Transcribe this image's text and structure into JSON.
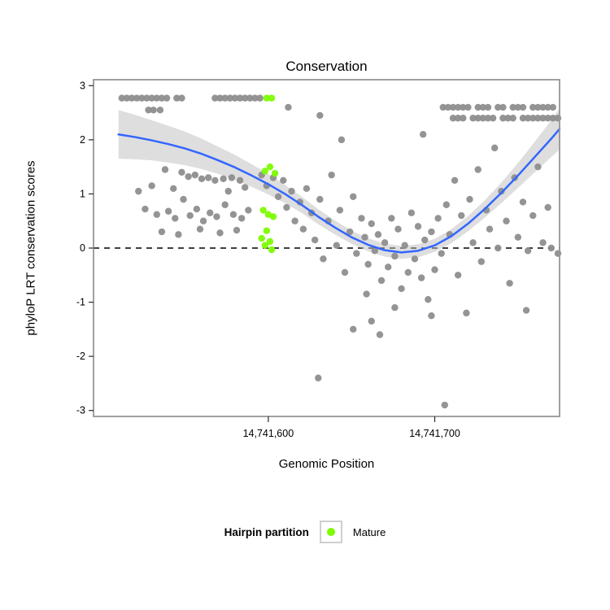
{
  "title": "Conservation",
  "x_axis": {
    "label": "Genomic Position",
    "ticks": [
      {
        "value": 14741600,
        "label": "14,741,600"
      },
      {
        "value": 14741700,
        "label": "14,741,700"
      }
    ]
  },
  "y_axis": {
    "label": "phyloP LRT conservation scores",
    "ticks": [
      {
        "value": 3,
        "label": "3"
      },
      {
        "value": 2,
        "label": "2"
      },
      {
        "value": 1,
        "label": "1"
      },
      {
        "value": 0,
        "label": "0"
      },
      {
        "value": -1,
        "label": "-1"
      },
      {
        "value": -2,
        "label": "-2"
      },
      {
        "value": -3,
        "label": "-3"
      }
    ]
  },
  "legend": {
    "title": "Hairpin partition",
    "items": [
      {
        "label": "Mature",
        "color": "#7CFC00"
      }
    ]
  },
  "colors": {
    "point": "#8E8E8E",
    "mature": "#7CFC00",
    "smooth_line": "#3366FF",
    "band": "#BDBDBD",
    "zero_line": "#000000",
    "panel_border": "#969696",
    "tick": "#2B2B2B"
  },
  "chart_data": {
    "type": "scatter",
    "title": "Conservation",
    "xlabel": "Genomic Position",
    "ylabel": "phyloP LRT conservation scores",
    "xlim": [
      14741495,
      14741775
    ],
    "ylim": [
      -3,
      3
    ],
    "grid": false,
    "zero_line_y": 0,
    "legend_position": "bottom",
    "series": [
      {
        "name": "points",
        "type": "scatter",
        "color": "#8E8E8E",
        "points": [
          [
            14741512,
            2.77
          ],
          [
            14741515,
            2.77
          ],
          [
            14741518,
            2.77
          ],
          [
            14741521,
            2.77
          ],
          [
            14741524,
            2.77
          ],
          [
            14741527,
            2.77
          ],
          [
            14741530,
            2.77
          ],
          [
            14741533,
            2.77
          ],
          [
            14741536,
            2.77
          ],
          [
            14741539,
            2.77
          ],
          [
            14741545,
            2.77
          ],
          [
            14741548,
            2.77
          ],
          [
            14741528,
            2.55
          ],
          [
            14741531,
            2.55
          ],
          [
            14741535,
            2.55
          ],
          [
            14741568,
            2.77
          ],
          [
            14741571,
            2.77
          ],
          [
            14741574,
            2.77
          ],
          [
            14741577,
            2.77
          ],
          [
            14741580,
            2.77
          ],
          [
            14741583,
            2.77
          ],
          [
            14741586,
            2.77
          ],
          [
            14741589,
            2.77
          ],
          [
            14741592,
            2.77
          ],
          [
            14741595,
            2.77
          ],
          [
            14741612,
            2.6
          ],
          [
            14741631,
            2.45
          ],
          [
            14741644,
            2.0
          ],
          [
            14741693,
            2.1
          ],
          [
            14741705,
            2.6
          ],
          [
            14741708,
            2.6
          ],
          [
            14741711,
            2.6
          ],
          [
            14741714,
            2.6
          ],
          [
            14741717,
            2.6
          ],
          [
            14741720,
            2.6
          ],
          [
            14741726,
            2.6
          ],
          [
            14741729,
            2.6
          ],
          [
            14741732,
            2.6
          ],
          [
            14741738,
            2.6
          ],
          [
            14741741,
            2.6
          ],
          [
            14741747,
            2.6
          ],
          [
            14741750,
            2.6
          ],
          [
            14741753,
            2.6
          ],
          [
            14741759,
            2.6
          ],
          [
            14741762,
            2.6
          ],
          [
            14741765,
            2.6
          ],
          [
            14741768,
            2.6
          ],
          [
            14741771,
            2.6
          ],
          [
            14741711,
            2.4
          ],
          [
            14741714,
            2.4
          ],
          [
            14741717,
            2.4
          ],
          [
            14741723,
            2.4
          ],
          [
            14741726,
            2.4
          ],
          [
            14741729,
            2.4
          ],
          [
            14741732,
            2.4
          ],
          [
            14741735,
            2.4
          ],
          [
            14741741,
            2.4
          ],
          [
            14741744,
            2.4
          ],
          [
            14741747,
            2.4
          ],
          [
            14741753,
            2.4
          ],
          [
            14741756,
            2.4
          ],
          [
            14741759,
            2.4
          ],
          [
            14741762,
            2.4
          ],
          [
            14741765,
            2.4
          ],
          [
            14741768,
            2.4
          ],
          [
            14741771,
            2.4
          ],
          [
            14741774,
            2.4
          ],
          [
            14741538,
            1.45
          ],
          [
            14741548,
            1.4
          ],
          [
            14741552,
            1.32
          ],
          [
            14741556,
            1.35
          ],
          [
            14741560,
            1.28
          ],
          [
            14741564,
            1.3
          ],
          [
            14741568,
            1.25
          ],
          [
            14741573,
            1.28
          ],
          [
            14741578,
            1.3
          ],
          [
            14741583,
            1.25
          ],
          [
            14741522,
            1.05
          ],
          [
            14741526,
            0.72
          ],
          [
            14741533,
            0.62
          ],
          [
            14741540,
            0.68
          ],
          [
            14741544,
            0.55
          ],
          [
            14741549,
            0.9
          ],
          [
            14741553,
            0.6
          ],
          [
            14741557,
            0.72
          ],
          [
            14741561,
            0.5
          ],
          [
            14741565,
            0.65
          ],
          [
            14741569,
            0.58
          ],
          [
            14741574,
            0.8
          ],
          [
            14741579,
            0.62
          ],
          [
            14741584,
            0.55
          ],
          [
            14741588,
            0.7
          ],
          [
            14741536,
            0.3
          ],
          [
            14741546,
            0.25
          ],
          [
            14741559,
            0.35
          ],
          [
            14741571,
            0.28
          ],
          [
            14741581,
            0.33
          ],
          [
            14741530,
            1.15
          ],
          [
            14741543,
            1.1
          ],
          [
            14741576,
            1.05
          ],
          [
            14741586,
            1.12
          ],
          [
            14741596,
            1.35
          ],
          [
            14741599,
            1.15
          ],
          [
            14741603,
            1.3
          ],
          [
            14741606,
            0.95
          ],
          [
            14741609,
            1.25
          ],
          [
            14741611,
            0.75
          ],
          [
            14741614,
            1.05
          ],
          [
            14741616,
            0.5
          ],
          [
            14741619,
            0.85
          ],
          [
            14741621,
            0.35
          ],
          [
            14741623,
            1.1
          ],
          [
            14741626,
            0.65
          ],
          [
            14741628,
            0.15
          ],
          [
            14741631,
            0.9
          ],
          [
            14741633,
            -0.2
          ],
          [
            14741636,
            0.5
          ],
          [
            14741638,
            1.35
          ],
          [
            14741641,
            0.05
          ],
          [
            14741643,
            0.7
          ],
          [
            14741646,
            -0.45
          ],
          [
            14741649,
            0.3
          ],
          [
            14741651,
            0.95
          ],
          [
            14741653,
            -0.1
          ],
          [
            14741656,
            0.55
          ],
          [
            14741630,
            -2.4
          ],
          [
            14741651,
            -1.5
          ],
          [
            14741659,
            -0.85
          ],
          [
            14741658,
            0.2
          ],
          [
            14741660,
            -0.3
          ],
          [
            14741662,
            0.45
          ],
          [
            14741664,
            -0.05
          ],
          [
            14741666,
            0.25
          ],
          [
            14741668,
            -0.6
          ],
          [
            14741670,
            0.1
          ],
          [
            14741672,
            -0.35
          ],
          [
            14741674,
            0.55
          ],
          [
            14741676,
            -0.15
          ],
          [
            14741678,
            0.35
          ],
          [
            14741680,
            -0.75
          ],
          [
            14741682,
            0.05
          ],
          [
            14741684,
            -0.45
          ],
          [
            14741686,
            0.65
          ],
          [
            14741688,
            -0.2
          ],
          [
            14741690,
            0.4
          ],
          [
            14741692,
            -0.55
          ],
          [
            14741694,
            0.15
          ],
          [
            14741696,
            -0.95
          ],
          [
            14741698,
            0.3
          ],
          [
            14741700,
            -0.4
          ],
          [
            14741667,
            -1.6
          ],
          [
            14741662,
            -1.35
          ],
          [
            14741698,
            -1.25
          ],
          [
            14741706,
            -2.9
          ],
          [
            14741676,
            -1.1
          ],
          [
            14741702,
            0.55
          ],
          [
            14741704,
            -0.1
          ],
          [
            14741707,
            0.8
          ],
          [
            14741709,
            0.25
          ],
          [
            14741712,
            1.25
          ],
          [
            14741714,
            -0.5
          ],
          [
            14741716,
            0.6
          ],
          [
            14741719,
            -1.2
          ],
          [
            14741721,
            0.9
          ],
          [
            14741723,
            0.1
          ],
          [
            14741726,
            1.45
          ],
          [
            14741728,
            -0.25
          ],
          [
            14741731,
            0.7
          ],
          [
            14741733,
            0.35
          ],
          [
            14741736,
            1.85
          ],
          [
            14741738,
            0.0
          ],
          [
            14741740,
            1.05
          ],
          [
            14741743,
            0.5
          ],
          [
            14741745,
            -0.65
          ],
          [
            14741748,
            1.3
          ],
          [
            14741750,
            0.2
          ],
          [
            14741753,
            0.85
          ],
          [
            14741756,
            -0.05
          ],
          [
            14741759,
            0.6
          ],
          [
            14741762,
            1.5
          ],
          [
            14741765,
            0.1
          ],
          [
            14741768,
            0.75
          ],
          [
            14741755,
            -1.15
          ],
          [
            14741770,
            0.0
          ],
          [
            14741774,
            -0.1
          ]
        ]
      },
      {
        "name": "Mature",
        "type": "scatter",
        "color": "#7CFC00",
        "points": [
          [
            14741599,
            2.77
          ],
          [
            14741602,
            2.77
          ],
          [
            14741601,
            1.5
          ],
          [
            14741598,
            1.42
          ],
          [
            14741604,
            1.38
          ],
          [
            14741597,
            0.7
          ],
          [
            14741600,
            0.62
          ],
          [
            14741603,
            0.58
          ],
          [
            14741599,
            0.32
          ],
          [
            14741596,
            0.18
          ],
          [
            14741601,
            0.12
          ],
          [
            14741598,
            0.05
          ],
          [
            14741602,
            -0.03
          ]
        ]
      },
      {
        "name": "loess_smooth",
        "type": "line",
        "color": "#3366FF",
        "points": [
          [
            14741510,
            2.1
          ],
          [
            14741520,
            2.05
          ],
          [
            14741530,
            1.99
          ],
          [
            14741540,
            1.92
          ],
          [
            14741550,
            1.84
          ],
          [
            14741560,
            1.74
          ],
          [
            14741570,
            1.62
          ],
          [
            14741580,
            1.49
          ],
          [
            14741590,
            1.34
          ],
          [
            14741600,
            1.18
          ],
          [
            14741610,
            1.0
          ],
          [
            14741620,
            0.8
          ],
          [
            14741630,
            0.58
          ],
          [
            14741640,
            0.38
          ],
          [
            14741650,
            0.2
          ],
          [
            14741660,
            0.06
          ],
          [
            14741670,
            -0.04
          ],
          [
            14741680,
            -0.08
          ],
          [
            14741690,
            -0.05
          ],
          [
            14741700,
            0.05
          ],
          [
            14741710,
            0.22
          ],
          [
            14741720,
            0.45
          ],
          [
            14741730,
            0.72
          ],
          [
            14741740,
            1.02
          ],
          [
            14741750,
            1.34
          ],
          [
            14741760,
            1.68
          ],
          [
            14741770,
            2.02
          ],
          [
            14741775,
            2.2
          ]
        ],
        "band_halfwidth": [
          0.45,
          0.41,
          0.37,
          0.34,
          0.31,
          0.28,
          0.25,
          0.23,
          0.21,
          0.19,
          0.17,
          0.15,
          0.14,
          0.13,
          0.12,
          0.12,
          0.12,
          0.12,
          0.12,
          0.12,
          0.13,
          0.14,
          0.16,
          0.19,
          0.23,
          0.28,
          0.34,
          0.38
        ]
      }
    ]
  }
}
